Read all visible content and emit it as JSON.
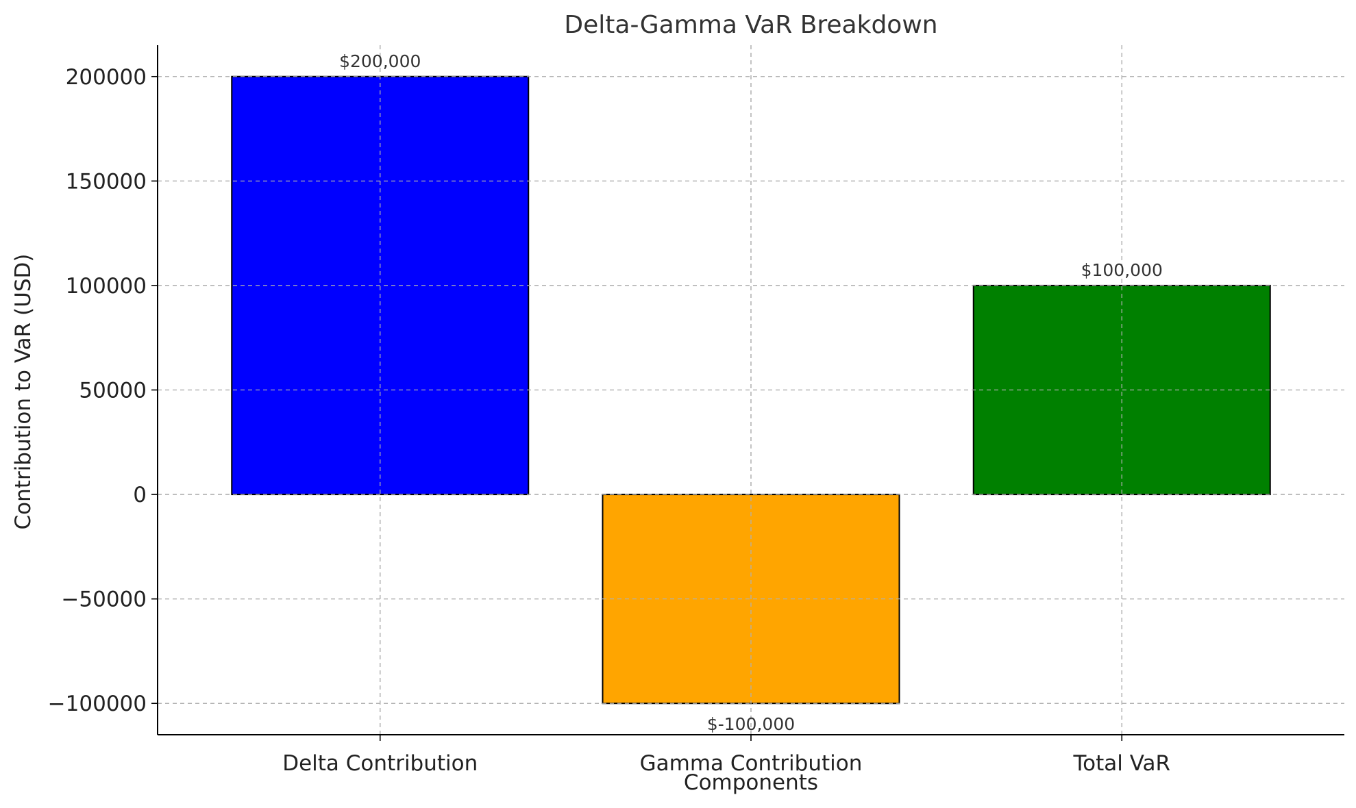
{
  "chart_data": {
    "type": "bar",
    "title": "Delta-Gamma VaR Breakdown",
    "xlabel": "Components",
    "ylabel": "Contribution to VaR (USD)",
    "categories": [
      "Delta Contribution",
      "Gamma Contribution",
      "Total VaR"
    ],
    "values": [
      200000,
      -100000,
      100000
    ],
    "data_labels": [
      "$200,000",
      "$-100,000",
      "$100,000"
    ],
    "colors": [
      "#0000ff",
      "#ffa500",
      "#008000"
    ],
    "ylim": [
      -115000,
      215000
    ],
    "yticks": [
      -100000,
      -50000,
      0,
      50000,
      100000,
      150000,
      200000
    ],
    "ytick_labels": [
      "−100000",
      "−50000",
      "0",
      "50000",
      "100000",
      "150000",
      "200000"
    ],
    "grid": true,
    "legend": false
  }
}
